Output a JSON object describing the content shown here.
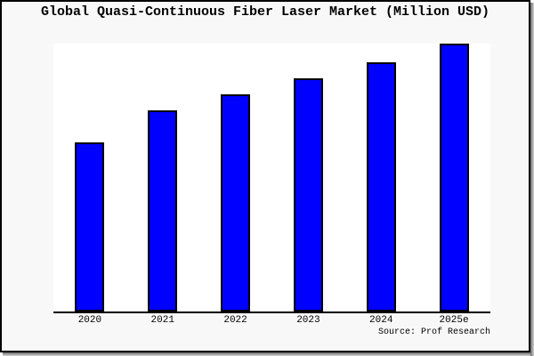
{
  "window": {
    "background_color": "#f8f8f8",
    "frame_border_color": "#000000",
    "shadow_dark_color": "#686868",
    "shadow_light_color": "#d6d6d6"
  },
  "chart_data": {
    "type": "bar",
    "title": "Global Quasi-Continuous Fiber Laser Market (Million USD)",
    "categories": [
      "2020",
      "2021",
      "2022",
      "2023",
      "2024",
      "2025e"
    ],
    "values": [
      63,
      75,
      81,
      87,
      93,
      100
    ],
    "values_unit": "relative bar height, percent of 2025e bar (chart shows no y-axis tick labels)",
    "xlabel": "",
    "ylabel": "",
    "ylim": [
      0,
      100
    ],
    "grid": false,
    "legend": false,
    "plot_background": "#ffffff",
    "bar_color": "#0000ff",
    "bar_border_color": "#000000",
    "axis_color": "#000000",
    "source_note": "Source: Prof Research"
  }
}
